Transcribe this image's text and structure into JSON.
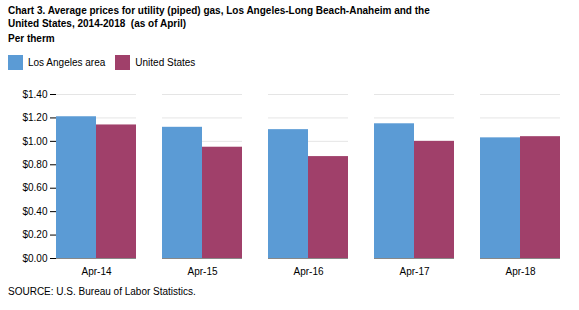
{
  "chart_data": {
    "type": "bar",
    "title": "Chart 3. Average prices for utility (piped) gas, Los Angeles-Long Beach-Anaheim and the\nUnited States, 2014-2018  (as of April)",
    "subtitle": "Per therm",
    "source": "SOURCE: U.S. Bureau of Labor Statistics.",
    "categories": [
      "Apr-14",
      "Apr-15",
      "Apr-16",
      "Apr-17",
      "Apr-18"
    ],
    "series": [
      {
        "name": "Los Angeles area",
        "color": "#5B9BD5",
        "values": [
          1.21,
          1.12,
          1.1,
          1.15,
          1.03
        ]
      },
      {
        "name": "United States",
        "color": "#A0406A",
        "values": [
          1.14,
          0.95,
          0.87,
          1.0,
          1.04
        ]
      }
    ],
    "ylim": [
      0,
      1.4
    ],
    "yticks": [
      {
        "value": 0.0,
        "label": "$0.00"
      },
      {
        "value": 0.2,
        "label": "$0.20"
      },
      {
        "value": 0.4,
        "label": "$0.40"
      },
      {
        "value": 0.6,
        "label": "$0.60"
      },
      {
        "value": 0.8,
        "label": "$0.80"
      },
      {
        "value": 1.0,
        "label": "$1.00"
      },
      {
        "value": 1.2,
        "label": "$1.20"
      },
      {
        "value": 1.4,
        "label": "$1.40"
      }
    ],
    "grid": true,
    "legend": "upper left"
  }
}
